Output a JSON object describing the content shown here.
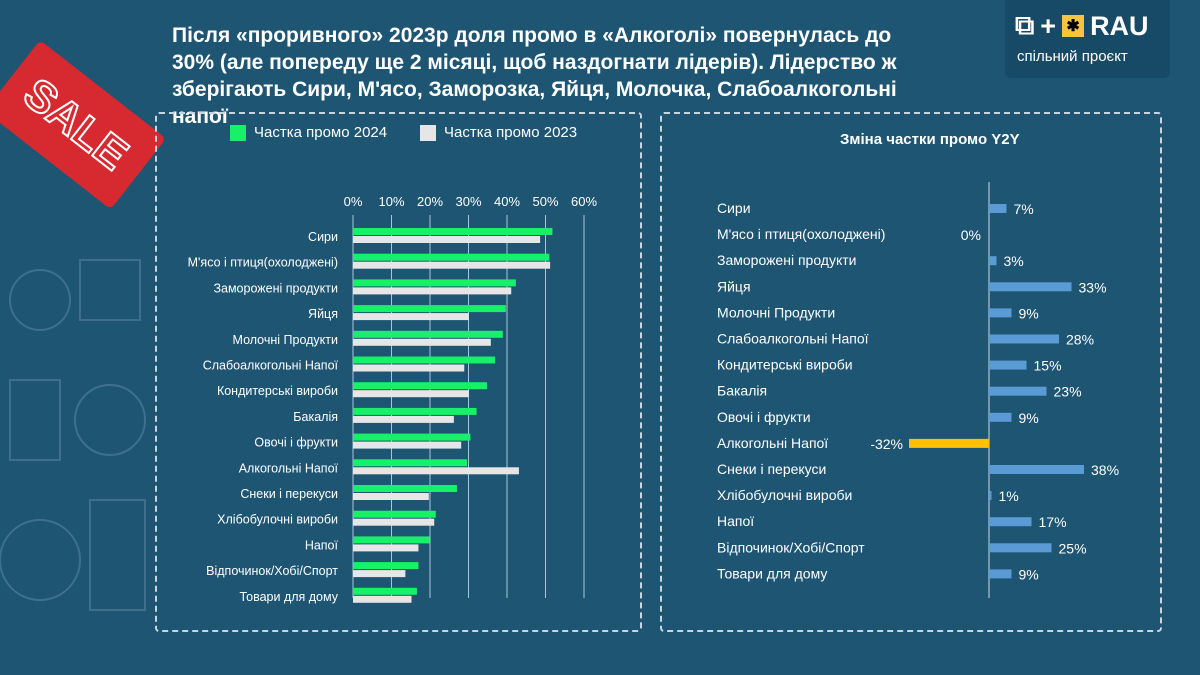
{
  "title": "Після «проривного» 2023р доля промо в «Алкоголі» повернулась до 30% (але попереду ще 2 місяці, щоб наздогнати лідерів). Лідерство ж зберігають Сири, М'ясо, Заморозка, Яйця, Молочка, Слабоалкогольні напої",
  "logo": {
    "text": "RAU",
    "plus": "+",
    "subtitle": "спільний проєкт"
  },
  "sale_tag": "SALE",
  "chart_data": [
    {
      "type": "bar",
      "orientation": "horizontal",
      "title": "",
      "xlim": [
        0,
        60
      ],
      "xticks": [
        "0%",
        "10%",
        "20%",
        "30%",
        "40%",
        "50%",
        "60%"
      ],
      "grid": true,
      "legend": "top",
      "categories": [
        "Сири",
        "М'ясо і птиця(охолоджені)",
        "Заморожені продукти",
        "Яйця",
        "Молочні Продукти",
        "Слабоалкогольні Напої",
        "Кондитерські вироби",
        "Бакалія",
        "Овочі і фрукти",
        "Алкогольні Напої",
        "Снеки і перекуси",
        "Хлібобулочні вироби",
        "Напої",
        "Відпочинок/Хобі/Спорт",
        "Товари для дому"
      ],
      "series": [
        {
          "name": "Частка промо 2024",
          "color": "#18f06a",
          "values": [
            51.8,
            51.0,
            42.3,
            39.7,
            38.9,
            36.9,
            34.8,
            32.1,
            30.5,
            29.6,
            27.0,
            21.5,
            19.9,
            17.0,
            16.6
          ]
        },
        {
          "name": "Частка промо 2023",
          "color": "#e6e6e6",
          "values": [
            48.6,
            51.2,
            41.1,
            30.1,
            35.8,
            28.9,
            30.1,
            26.2,
            28.1,
            43.1,
            19.7,
            21.1,
            17.0,
            13.6,
            15.2
          ]
        }
      ]
    },
    {
      "type": "bar",
      "orientation": "horizontal",
      "title": "Зміна частки промо Y2Y",
      "categories": [
        "Сири",
        "М'ясо і птиця(охолоджені)",
        "Заморожені продукти",
        "Яйця",
        "Молочні Продукти",
        "Слабоалкогольні Напої",
        "Кондитерські вироби",
        "Бакалія",
        "Овочі і фрукти",
        "Алкогольні Напої",
        "Снеки і перекуси",
        "Хлібобулочні вироби",
        "Напої",
        "Відпочинок/Хобі/Спорт",
        "Товари для дому"
      ],
      "values": [
        7,
        0,
        3,
        33,
        9,
        28,
        15,
        23,
        9,
        -32,
        38,
        1,
        17,
        25,
        9
      ],
      "labels": [
        "7%",
        "0%",
        "3%",
        "33%",
        "9%",
        "28%",
        "15%",
        "23%",
        "9%",
        "-32%",
        "38%",
        "1%",
        "17%",
        "25%",
        "9%"
      ],
      "colors": {
        "positive": "#5b9bd5",
        "negative": "#ffc000"
      }
    }
  ]
}
